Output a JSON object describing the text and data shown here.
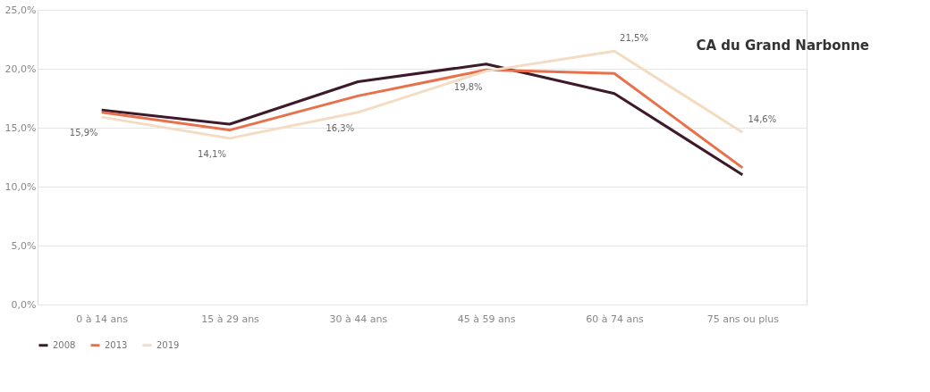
{
  "chart_data": {
    "type": "line",
    "categories": [
      "0 à 14 ans",
      "15 à 29 ans",
      "30 à 44 ans",
      "45 à 59 ans",
      "60 à 74 ans",
      "75 ans ou plus"
    ],
    "series": [
      {
        "name": "2008",
        "color": "#3d1a2a",
        "values": [
          16.5,
          15.3,
          18.9,
          20.4,
          17.9,
          11.0
        ]
      },
      {
        "name": "2013",
        "color": "#e8704a",
        "values": [
          16.3,
          14.8,
          17.7,
          19.9,
          19.6,
          11.6
        ]
      },
      {
        "name": "2019",
        "color": "#f3dcc2",
        "values": [
          15.9,
          14.1,
          16.3,
          19.8,
          21.5,
          14.6
        ],
        "value_labels": [
          "15,9%",
          "14,1%",
          "16,3%",
          "19,8%",
          "21,5%",
          "14,6%"
        ]
      }
    ],
    "ylim": [
      0,
      25
    ],
    "yticks": [
      {
        "value": 0,
        "label": "0,0%"
      },
      {
        "value": 5,
        "label": "5,0%"
      },
      {
        "value": 10,
        "label": "10,0%"
      },
      {
        "value": 15,
        "label": "15,0%"
      },
      {
        "value": 20,
        "label": "20,0%"
      },
      {
        "value": 25,
        "label": "25,0%"
      }
    ],
    "grid": "y",
    "legend": "bottom",
    "marker": "none",
    "line_style": "solid",
    "annotations": [
      "CA du Grand Narbonne"
    ]
  }
}
